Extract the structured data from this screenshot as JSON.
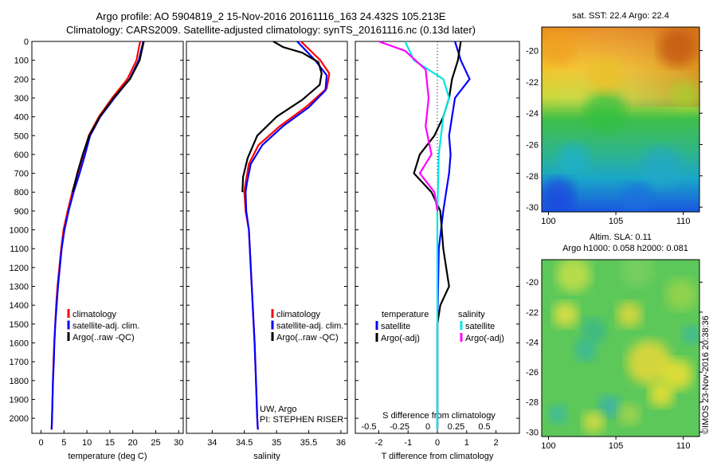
{
  "header": {
    "line1": "Argo profile: AO 5904819_2 15-Nov-2016 20161116_163 24.432S 105.213E",
    "line2": "Climatology: CARS2009. Satellite-adjusted climatology: synTS_20161116.nc (0.13d later)"
  },
  "colors": {
    "climatology": "#ff0000",
    "satellite": "#0000ff",
    "argo": "#000000",
    "sal_satellite": "#00e5e5",
    "sal_argo": "#ff00ff"
  },
  "chart_data": [
    {
      "type": "line",
      "xlabel": "temperature (deg C)",
      "ylabel": "",
      "xlim": [
        -2,
        31
      ],
      "ylim": [
        2080,
        0
      ],
      "xticks": [
        "0",
        "5",
        "10",
        "15",
        "20",
        "25",
        "30"
      ],
      "yticks": [
        "0",
        "100",
        "200",
        "300",
        "400",
        "500",
        "600",
        "700",
        "800",
        "900",
        "1000",
        "1100",
        "1200",
        "1300",
        "1400",
        "1500",
        "1600",
        "1700",
        "1800",
        "1900",
        "2000"
      ],
      "legend": {
        "placement": "lower-middle",
        "entries": [
          "climatology",
          "satellite-adj. clim.",
          "Argo(..raw -QC)"
        ]
      },
      "series": [
        {
          "name": "climatology",
          "color": "#ff0000",
          "points": [
            [
              21.6,
              0
            ],
            [
              20.8,
              100
            ],
            [
              18.8,
              200
            ],
            [
              15.5,
              300
            ],
            [
              12.6,
              400
            ],
            [
              10.4,
              500
            ],
            [
              9.2,
              600
            ],
            [
              8.0,
              700
            ],
            [
              6.8,
              800
            ],
            [
              5.8,
              900
            ],
            [
              4.9,
              1000
            ],
            [
              4.4,
              1100
            ],
            [
              4.0,
              1200
            ],
            [
              3.6,
              1300
            ],
            [
              3.3,
              1400
            ],
            [
              3.1,
              1500
            ],
            [
              2.9,
              1600
            ],
            [
              2.7,
              1700
            ],
            [
              2.6,
              1800
            ],
            [
              2.5,
              1900
            ],
            [
              2.4,
              2000
            ],
            [
              2.3,
              2060
            ]
          ]
        },
        {
          "name": "satellite-adj. clim.",
          "color": "#0000ff",
          "points": [
            [
              22.3,
              0
            ],
            [
              21.3,
              100
            ],
            [
              19.3,
              200
            ],
            [
              16.0,
              300
            ],
            [
              12.9,
              400
            ],
            [
              10.7,
              500
            ],
            [
              9.6,
              600
            ],
            [
              8.4,
              700
            ],
            [
              7.1,
              800
            ],
            [
              6.0,
              900
            ],
            [
              5.1,
              1000
            ],
            [
              4.5,
              1100
            ],
            [
              4.1,
              1200
            ],
            [
              3.7,
              1300
            ],
            [
              3.4,
              1400
            ],
            [
              3.1,
              1500
            ],
            [
              2.9,
              1600
            ],
            [
              2.8,
              1700
            ],
            [
              2.6,
              1800
            ],
            [
              2.5,
              1900
            ],
            [
              2.4,
              2000
            ],
            [
              2.3,
              2060
            ]
          ]
        },
        {
          "name": "Argo(..raw -QC)",
          "color": "#000000",
          "points": [
            [
              22.4,
              0
            ],
            [
              21.5,
              100
            ],
            [
              19.4,
              200
            ],
            [
              15.8,
              300
            ],
            [
              12.8,
              400
            ],
            [
              10.5,
              500
            ],
            [
              9.1,
              600
            ],
            [
              7.9,
              700
            ],
            [
              6.9,
              800
            ]
          ]
        }
      ],
      "annotations": []
    },
    {
      "type": "line",
      "xlabel": "salinity",
      "xlim": [
        33.6,
        36.1
      ],
      "ylim": [
        2080,
        0
      ],
      "xticks": [
        "34",
        "34.5",
        "35",
        "35.5",
        "36"
      ],
      "legend": {
        "placement": "lower-right",
        "entries": [
          "climatology",
          "satellite-adj. clim.",
          "Argo(..raw -QC)"
        ]
      },
      "series": [
        {
          "name": "climatology",
          "color": "#ff0000",
          "points": [
            [
              35.38,
              0
            ],
            [
              35.68,
              100
            ],
            [
              35.82,
              170
            ],
            [
              35.78,
              250
            ],
            [
              35.45,
              350
            ],
            [
              35.05,
              450
            ],
            [
              34.72,
              550
            ],
            [
              34.57,
              650
            ],
            [
              34.52,
              750
            ],
            [
              34.5,
              800
            ],
            [
              34.52,
              900
            ],
            [
              34.57,
              1000
            ],
            [
              34.6,
              1200
            ],
            [
              34.63,
              1400
            ],
            [
              34.66,
              1600
            ],
            [
              34.68,
              1800
            ],
            [
              34.7,
              2000
            ],
            [
              34.71,
              2060
            ]
          ]
        },
        {
          "name": "satellite-adj. clim.",
          "color": "#0000ff",
          "points": [
            [
              35.32,
              0
            ],
            [
              35.6,
              100
            ],
            [
              35.78,
              180
            ],
            [
              35.76,
              260
            ],
            [
              35.5,
              350
            ],
            [
              35.1,
              450
            ],
            [
              34.78,
              550
            ],
            [
              34.6,
              650
            ],
            [
              34.54,
              750
            ],
            [
              34.52,
              800
            ],
            [
              34.53,
              900
            ],
            [
              34.57,
              1000
            ],
            [
              34.6,
              1200
            ],
            [
              34.63,
              1400
            ],
            [
              34.66,
              1600
            ],
            [
              34.68,
              1800
            ],
            [
              34.7,
              2000
            ],
            [
              34.71,
              2060
            ]
          ]
        },
        {
          "name": "Argo(..raw -QC)",
          "color": "#000000",
          "points": [
            [
              34.95,
              0
            ],
            [
              35.1,
              30
            ],
            [
              35.4,
              60
            ],
            [
              35.65,
              110
            ],
            [
              35.7,
              170
            ],
            [
              35.67,
              230
            ],
            [
              35.4,
              310
            ],
            [
              35.0,
              400
            ],
            [
              34.7,
              500
            ],
            [
              34.55,
              620
            ],
            [
              34.48,
              720
            ],
            [
              34.47,
              800
            ]
          ]
        }
      ],
      "annotations": [
        "UW, Argo",
        "PI: STEPHEN RISER"
      ]
    },
    {
      "type": "line",
      "xlabel": "T difference from climatology",
      "xlabel2": "S difference from climatology",
      "xlim": [
        -2.8,
        2.8
      ],
      "ylim": [
        2080,
        0
      ],
      "xticks": [
        "-2",
        "-1",
        "0",
        "1",
        "2"
      ],
      "xticks_s": [
        "-0.5",
        "-0.25",
        "0",
        "0.25",
        "0.5"
      ],
      "legend": {
        "placement": "lower",
        "headers": [
          "temperature",
          "salinity"
        ],
        "entries": [
          "satellite",
          "Argo(-adj)",
          "satellite",
          "Argo(-adj)"
        ]
      },
      "series": [
        {
          "name": "temperature satellite",
          "color": "#0000ff",
          "points": [
            [
              0.6,
              0
            ],
            [
              0.8,
              100
            ],
            [
              1.1,
              200
            ],
            [
              0.6,
              300
            ],
            [
              0.5,
              400
            ],
            [
              0.4,
              500
            ],
            [
              0.45,
              600
            ],
            [
              0.4,
              700
            ],
            [
              0.3,
              800
            ],
            [
              0.2,
              900
            ],
            [
              0.05,
              1100
            ],
            [
              0.0,
              1500
            ],
            [
              0.0,
              2060
            ]
          ]
        },
        {
          "name": "temperature Argo(-adj)",
          "color": "#000000",
          "points": [
            [
              0.8,
              0
            ],
            [
              0.7,
              100
            ],
            [
              0.5,
              200
            ],
            [
              0.4,
              300
            ],
            [
              0.2,
              400
            ],
            [
              -0.1,
              500
            ],
            [
              -0.6,
              600
            ],
            [
              -0.8,
              700
            ],
            [
              -0.2,
              800
            ],
            [
              0.1,
              900
            ],
            [
              0.2,
              1100
            ],
            [
              0.4,
              1300
            ],
            [
              0.1,
              1400
            ],
            [
              0.0,
              1500
            ],
            [
              0.0,
              2060
            ]
          ]
        },
        {
          "name": "salinity satellite",
          "color": "#00e5e5",
          "points": [
            [
              -1.1,
              0
            ],
            [
              -0.8,
              100
            ],
            [
              0.2,
              200
            ],
            [
              0.4,
              300
            ],
            [
              0.2,
              400
            ],
            [
              0.05,
              600
            ],
            [
              0.0,
              900
            ],
            [
              0.0,
              2060
            ]
          ]
        },
        {
          "name": "salinity Argo(-adj)",
          "color": "#ff00ff",
          "points": [
            [
              -2.0,
              0
            ],
            [
              -1.1,
              50
            ],
            [
              -0.4,
              150
            ],
            [
              -0.3,
              300
            ],
            [
              -0.4,
              450
            ],
            [
              -0.2,
              600
            ],
            [
              -0.6,
              700
            ],
            [
              -0.1,
              800
            ],
            [
              0.0,
              900
            ]
          ]
        }
      ]
    }
  ],
  "maps": {
    "sst": {
      "title": "sat. SST: 22.4  Argo: 22.4",
      "yticks": [
        "-20",
        "-22",
        "-24",
        "-26",
        "-28",
        "-30"
      ],
      "xticks": [
        "100",
        "105",
        "110"
      ],
      "xlim": [
        99.5,
        111.2
      ],
      "ylim": [
        -30.3,
        -18.5
      ]
    },
    "sla": {
      "title1": "Altim. SLA: 0.11",
      "title2": "Argo h1000: 0.058 h2000: 0.081",
      "yticks": [
        "-20",
        "-22",
        "-24",
        "-26",
        "-28",
        "-30"
      ],
      "xticks": [
        "100",
        "105",
        "110"
      ],
      "xlim": [
        99.5,
        111.2
      ],
      "ylim": [
        -30.3,
        -18.5
      ]
    }
  },
  "credit": "©IMOS 23-Nov-2016 20:38:36"
}
